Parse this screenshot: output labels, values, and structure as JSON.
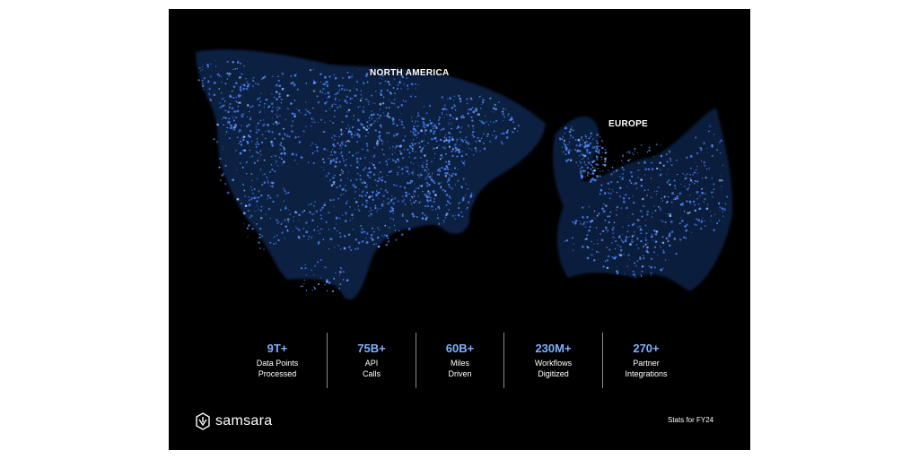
{
  "map": {
    "regions": [
      {
        "id": "north-america",
        "label": "NORTH AMERICA"
      },
      {
        "id": "europe",
        "label": "EUROPE"
      }
    ],
    "colors": {
      "background": "#000000",
      "points": "#4a86ff",
      "points_bright": "#8fbaff",
      "stat_value": "#7fb0ff"
    }
  },
  "stats": [
    {
      "value": "9T+",
      "line1": "Data Points",
      "line2": "Processed"
    },
    {
      "value": "75B+",
      "line1": "API",
      "line2": "Calls"
    },
    {
      "value": "60B+",
      "line1": "Miles",
      "line2": "Driven"
    },
    {
      "value": "230M+",
      "line1": "Workflows",
      "line2": "Digitized"
    },
    {
      "value": "270+",
      "line1": "Partner",
      "line2": "Integrations"
    }
  ],
  "brand": {
    "name": "samsara",
    "logo_icon": "samsara-logo-icon"
  },
  "footnote": "Stats for FY24"
}
